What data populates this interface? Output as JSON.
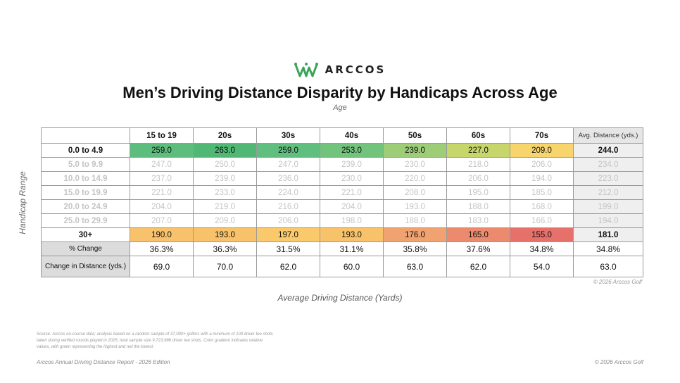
{
  "brand": {
    "name": "ARCCOS",
    "accent": "#3aa45a"
  },
  "chart_data": {
    "type": "table",
    "title": "Men’s Driving Distance Disparity by Handicaps Across Age",
    "subtitle": "Age",
    "xlabel": "Average Driving Distance (Yards)",
    "ylabel": "Handicap Range",
    "columns": [
      "15 to 19",
      "20s",
      "30s",
      "40s",
      "50s",
      "60s",
      "70s"
    ],
    "avg_header": "Avg. Distance (yds.)",
    "rows": [
      {
        "label": "0.0 to 4.9",
        "values": [
          "259.0",
          "263.0",
          "259.0",
          "253.0",
          "239.0",
          "227.0",
          "209.0"
        ],
        "avg": "244.0",
        "highlight": true,
        "colors": [
          "#5cbd7c",
          "#50b874",
          "#60bf7e",
          "#72c37c",
          "#9ecd78",
          "#c7d66a",
          "#f7d56c"
        ]
      },
      {
        "label": "5.0 to 9.9",
        "values": [
          "247.0",
          "250.0",
          "247.0",
          "239.0",
          "230.0",
          "218.0",
          "206.0"
        ],
        "avg": "234.0",
        "highlight": false
      },
      {
        "label": "10.0 to 14.9",
        "values": [
          "237.0",
          "239.0",
          "236.0",
          "230.0",
          "220.0",
          "206.0",
          "194.0"
        ],
        "avg": "223.0",
        "highlight": false
      },
      {
        "label": "15.0 to 19.9",
        "values": [
          "221.0",
          "233.0",
          "224.0",
          "221.0",
          "208.0",
          "195.0",
          "185.0"
        ],
        "avg": "212.0",
        "highlight": false
      },
      {
        "label": "20.0 to 24.9",
        "values": [
          "204.0",
          "219.0",
          "216.0",
          "204.0",
          "193.0",
          "188.0",
          "168.0"
        ],
        "avg": "199.0",
        "highlight": false
      },
      {
        "label": "25.0 to 29.9",
        "values": [
          "207.0",
          "209.0",
          "206.0",
          "198.0",
          "188.0",
          "183.0",
          "166.0"
        ],
        "avg": "194.0",
        "highlight": false
      },
      {
        "label": "30+",
        "values": [
          "190.0",
          "193.0",
          "197.0",
          "193.0",
          "176.0",
          "165.0",
          "155.0"
        ],
        "avg": "181.0",
        "highlight": true,
        "colors": [
          "#f8c26c",
          "#f8c26a",
          "#fac96c",
          "#f8c26a",
          "#f0a270",
          "#eb8a6c",
          "#e6706a"
        ]
      }
    ],
    "stats": [
      {
        "label": "% Change",
        "values": [
          "36.3%",
          "36.3%",
          "31.5%",
          "31.1%",
          "35.8%",
          "37.6%",
          "34.8%"
        ],
        "avg": "34.8%"
      },
      {
        "label": "Change in Distance (yds.)",
        "values": [
          "69.0",
          "70.0",
          "62.0",
          "60.0",
          "63.0",
          "62.0",
          "54.0"
        ],
        "avg": "63.0"
      }
    ]
  },
  "copyright": "© 2026 Arccos Golf",
  "source_note": "Source: Arccos on-course data; analysis based on a random sample of 37,000+ golfers with a minimum of 100 driver tee shots taken during verified rounds played in 2025; total sample size 9,723,986 driver tee shots. Color gradient indicates relative values, with green representing the highest and red the lowest.",
  "footer": {
    "left": "Arccos Annual Driving Distance Report - 2026 Edition",
    "right": "© 2026 Arccos Golf"
  }
}
